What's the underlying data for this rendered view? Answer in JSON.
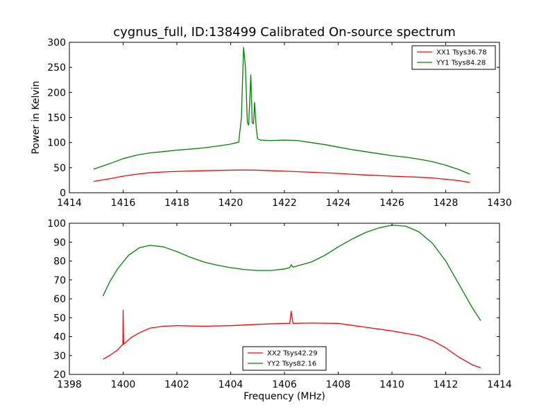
{
  "figure": {
    "title": "cygnus_full, ID:138499 Calibrated On-source spectrum"
  },
  "chart_data": [
    {
      "type": "line",
      "title": "cygnus_full, ID:138499 Calibrated On-source spectrum",
      "xlabel": "",
      "ylabel": "Power in Kelvin",
      "xlim": [
        1414,
        1430
      ],
      "ylim": [
        0,
        300
      ],
      "xticks": [
        1414,
        1416,
        1418,
        1420,
        1422,
        1424,
        1426,
        1428,
        1430
      ],
      "yticks": [
        0,
        50,
        100,
        150,
        200,
        250,
        300
      ],
      "grid": false,
      "legend_position": "top-right",
      "series": [
        {
          "name": "XX1 Tsys36.78",
          "color": "#ff0000",
          "points": [
            [
              1414.9,
              22.5
            ],
            [
              1415.5,
              28
            ],
            [
              1416,
              33
            ],
            [
              1416.5,
              37
            ],
            [
              1417,
              40
            ],
            [
              1417.5,
              41.5
            ],
            [
              1418,
              42.5
            ],
            [
              1419,
              44
            ],
            [
              1420,
              45
            ],
            [
              1420.5,
              45.5
            ],
            [
              1421,
              45
            ],
            [
              1422,
              43
            ],
            [
              1423,
              41
            ],
            [
              1424,
              38.5
            ],
            [
              1425,
              35.5
            ],
            [
              1426,
              33
            ],
            [
              1427,
              31
            ],
            [
              1427.5,
              29.5
            ],
            [
              1428,
              27
            ],
            [
              1428.5,
              24
            ],
            [
              1428.9,
              20.5
            ]
          ]
        },
        {
          "name": "YY1 Tsys84.28",
          "color": "#008000",
          "points": [
            [
              1414.9,
              47
            ],
            [
              1415.5,
              58
            ],
            [
              1416,
              68
            ],
            [
              1416.5,
              75
            ],
            [
              1417,
              79.5
            ],
            [
              1417.5,
              82
            ],
            [
              1418,
              85
            ],
            [
              1418.5,
              87
            ],
            [
              1419,
              89.5
            ],
            [
              1419.5,
              93
            ],
            [
              1420,
              97
            ],
            [
              1420.3,
              101
            ],
            [
              1420.4,
              150
            ],
            [
              1420.48,
              290
            ],
            [
              1420.55,
              250
            ],
            [
              1420.62,
              140
            ],
            [
              1420.67,
              135
            ],
            [
              1420.75,
              235
            ],
            [
              1420.8,
              140
            ],
            [
              1420.85,
              138
            ],
            [
              1420.89,
              180
            ],
            [
              1420.95,
              130
            ],
            [
              1421,
              108
            ],
            [
              1421.1,
              105
            ],
            [
              1421.5,
              104
            ],
            [
              1422,
              105
            ],
            [
              1422.5,
              104
            ],
            [
              1423,
              100
            ],
            [
              1423.5,
              96
            ],
            [
              1424,
              91
            ],
            [
              1424.5,
              86
            ],
            [
              1425,
              82
            ],
            [
              1425.5,
              78
            ],
            [
              1426,
              74
            ],
            [
              1426.5,
              71
            ],
            [
              1427,
              67
            ],
            [
              1427.5,
              62
            ],
            [
              1428,
              55
            ],
            [
              1428.5,
              46
            ],
            [
              1428.9,
              37
            ]
          ]
        }
      ]
    },
    {
      "type": "line",
      "title": "",
      "xlabel": "Frequency (MHz)",
      "ylabel": "",
      "xlim": [
        1398,
        1414
      ],
      "ylim": [
        20,
        100
      ],
      "xticks": [
        1398,
        1400,
        1402,
        1404,
        1406,
        1408,
        1410,
        1412,
        1414
      ],
      "yticks": [
        20,
        30,
        40,
        50,
        60,
        70,
        80,
        90,
        100
      ],
      "grid": false,
      "legend_position": "bottom-center",
      "series": [
        {
          "name": "XX2 Tsys42.29",
          "color": "#ff0000",
          "points": [
            [
              1399.25,
              28
            ],
            [
              1399.5,
              30
            ],
            [
              1399.8,
              33
            ],
            [
              1399.99,
              36
            ],
            [
              1400.0,
              54
            ],
            [
              1400.02,
              36
            ],
            [
              1400.3,
              39.5
            ],
            [
              1400.6,
              42
            ],
            [
              1401,
              44.5
            ],
            [
              1401.5,
              45.5
            ],
            [
              1402,
              45.8
            ],
            [
              1403,
              45.5
            ],
            [
              1404,
              45.8
            ],
            [
              1405,
              46.5
            ],
            [
              1406,
              47
            ],
            [
              1406.2,
              47
            ],
            [
              1406.25,
              53.5
            ],
            [
              1406.32,
              47
            ],
            [
              1407,
              47.2
            ],
            [
              1408,
              47
            ],
            [
              1409,
              45
            ],
            [
              1410,
              43
            ],
            [
              1411,
              40.5
            ],
            [
              1411.5,
              38
            ],
            [
              1412,
              34
            ],
            [
              1412.5,
              29
            ],
            [
              1413,
              25
            ],
            [
              1413.3,
              23.5
            ]
          ]
        },
        {
          "name": "YY2 Tsys82.16",
          "color": "#008000",
          "points": [
            [
              1399.25,
              61.5
            ],
            [
              1399.5,
              69
            ],
            [
              1399.8,
              76
            ],
            [
              1400.2,
              83
            ],
            [
              1400.6,
              87
            ],
            [
              1401,
              88.3
            ],
            [
              1401.5,
              87.5
            ],
            [
              1402,
              85
            ],
            [
              1402.5,
              82
            ],
            [
              1403,
              79.5
            ],
            [
              1403.5,
              77.8
            ],
            [
              1404,
              76.5
            ],
            [
              1404.5,
              75.5
            ],
            [
              1405,
              75
            ],
            [
              1405.5,
              75
            ],
            [
              1406,
              75.8
            ],
            [
              1406.2,
              76.5
            ],
            [
              1406.25,
              78
            ],
            [
              1406.32,
              76.8
            ],
            [
              1407,
              79.5
            ],
            [
              1407.5,
              83
            ],
            [
              1408,
              87.5
            ],
            [
              1408.5,
              91.5
            ],
            [
              1409,
              95
            ],
            [
              1409.5,
              97.5
            ],
            [
              1410,
              99
            ],
            [
              1410.5,
              98.5
            ],
            [
              1411,
              95.5
            ],
            [
              1411.5,
              89.5
            ],
            [
              1412,
              80
            ],
            [
              1412.5,
              67.5
            ],
            [
              1413,
              55
            ],
            [
              1413.3,
              48.5
            ]
          ]
        }
      ]
    }
  ]
}
